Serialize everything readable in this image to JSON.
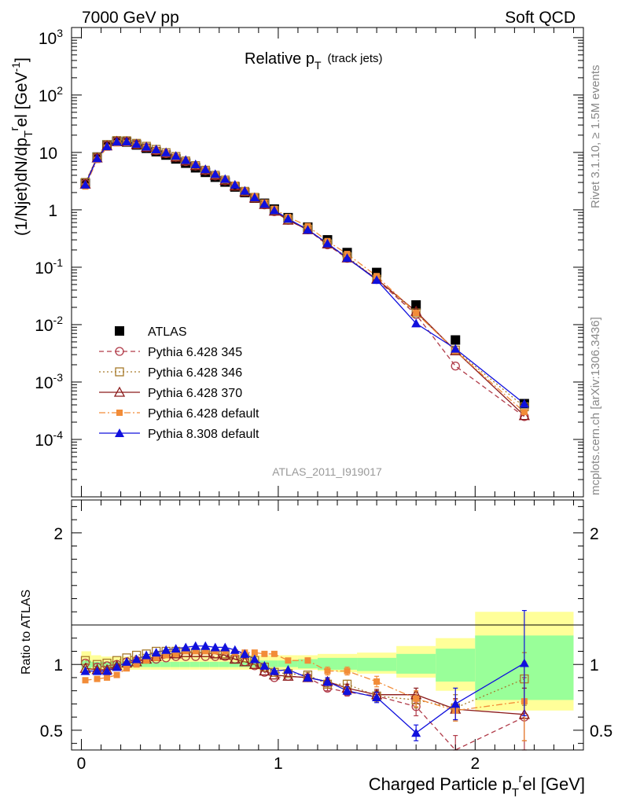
{
  "header": {
    "left": "7000 GeV pp",
    "right": "Soft QCD"
  },
  "side_text": {
    "rivet": "Rivet 3.1.10, ≥ 1.5M events",
    "mcplots": "mcplots.cern.ch [arXiv:1306.3436]"
  },
  "analysis_id": "ATLAS_2011_I919017",
  "colors": {
    "atlas": "#000000",
    "p345": "#b03a48",
    "p346": "#a6792a",
    "p370": "#8b1a1a",
    "pdef": "#f28c38",
    "p8": "#1010dd",
    "band_yellow": "#ffff99",
    "band_green": "#99ff99"
  },
  "chart_data": [
    {
      "type": "line",
      "title": "Relative pT (track jets)",
      "title_main": "Relative p",
      "title_sub": "T",
      "title_note": "(track jets)",
      "ylabel": "(1/Njet)dN/dpTrel [GeV-1]",
      "ylabel_parts": [
        "(1/Njet)dN/dp",
        "T",
        "r",
        "el [GeV",
        "-1",
        "]"
      ],
      "yscale": "log",
      "xlim": [
        -0.05,
        2.55
      ],
      "ylim": [
        1e-05,
        1500
      ],
      "y_ticks": [
        {
          "value": 0.0001,
          "base": "10",
          "exp": "-4"
        },
        {
          "value": 0.001,
          "base": "10",
          "exp": "-3"
        },
        {
          "value": 0.01,
          "base": "10",
          "exp": "-2"
        },
        {
          "value": 0.1,
          "base": "10",
          "exp": "-1"
        },
        {
          "value": 1,
          "base": "1",
          "exp": ""
        },
        {
          "value": 10,
          "base": "10",
          "exp": ""
        },
        {
          "value": 100,
          "base": "10",
          "exp": "2"
        },
        {
          "value": 1000,
          "base": "10",
          "exp": "3"
        }
      ],
      "legend_position": "bottom-left",
      "x": [
        0.02,
        0.08,
        0.13,
        0.18,
        0.23,
        0.28,
        0.33,
        0.38,
        0.43,
        0.48,
        0.53,
        0.58,
        0.63,
        0.68,
        0.73,
        0.78,
        0.83,
        0.88,
        0.93,
        0.98,
        1.05,
        1.15,
        1.25,
        1.35,
        1.5,
        1.7,
        1.9,
        2.25
      ],
      "series": [
        {
          "name": "ATLAS",
          "key": "atlas",
          "marker": "square-filled",
          "values": [
            2.9,
            8.3,
            13.5,
            15.6,
            15.2,
            13.5,
            11.8,
            10.3,
            9.0,
            7.7,
            6.5,
            5.4,
            4.5,
            3.7,
            3.05,
            2.5,
            2.0,
            1.6,
            1.3,
            1.03,
            0.73,
            0.5,
            0.3,
            0.18,
            0.081,
            0.022,
            0.0054,
            0.00042
          ]
        },
        {
          "name": "Pythia 6.428 345",
          "key": "p345",
          "marker": "circle-open",
          "dash": "6,4",
          "values": [
            2.9,
            8.2,
            13.5,
            15.8,
            15.6,
            14.0,
            12.2,
            10.7,
            9.5,
            8.2,
            6.9,
            5.8,
            4.8,
            3.9,
            3.2,
            2.6,
            2.05,
            1.6,
            1.22,
            0.93,
            0.66,
            0.45,
            0.245,
            0.143,
            0.061,
            0.015,
            0.0019,
            0.00025
          ]
        },
        {
          "name": "Pythia 6.428 346",
          "key": "p346",
          "marker": "square-open",
          "dash": "2,3",
          "values": [
            3.0,
            8.3,
            13.7,
            16.1,
            16.0,
            14.4,
            12.8,
            11.3,
            9.9,
            8.5,
            7.1,
            5.9,
            4.9,
            4.0,
            3.3,
            2.6,
            2.1,
            1.65,
            1.27,
            0.97,
            0.68,
            0.46,
            0.255,
            0.152,
            0.062,
            0.016,
            0.0036,
            0.00037
          ]
        },
        {
          "name": "Pythia 6.428 370",
          "key": "p370",
          "marker": "triangle-open",
          "dash": "",
          "values": [
            2.8,
            8.0,
            13.0,
            15.5,
            15.3,
            13.8,
            12.3,
            10.9,
            9.7,
            8.3,
            7.1,
            5.9,
            4.9,
            4.0,
            3.25,
            2.6,
            2.05,
            1.6,
            1.24,
            0.95,
            0.66,
            0.45,
            0.255,
            0.145,
            0.062,
            0.017,
            0.0035,
            0.00026
          ]
        },
        {
          "name": "Pythia 6.428 default",
          "key": "pdef",
          "marker": "square-filled-small",
          "dash": "8,3,2,3",
          "values": [
            2.55,
            7.4,
            12.1,
            14.4,
            14.7,
            13.5,
            12.1,
            10.8,
            9.6,
            8.3,
            7.1,
            5.9,
            4.9,
            4.0,
            3.3,
            2.7,
            2.15,
            1.71,
            1.33,
            1.04,
            0.75,
            0.52,
            0.285,
            0.17,
            0.07,
            0.016,
            0.0035,
            0.0003
          ]
        },
        {
          "name": "Pythia 8.308 default",
          "key": "p8",
          "marker": "triangle-filled",
          "dash": "",
          "values": [
            2.75,
            7.9,
            12.8,
            15.4,
            15.5,
            14.1,
            12.6,
            11.3,
            10.0,
            8.7,
            7.4,
            6.2,
            5.1,
            4.2,
            3.45,
            2.75,
            2.15,
            1.65,
            1.27,
            0.98,
            0.7,
            0.45,
            0.26,
            0.145,
            0.06,
            0.0105,
            0.0038,
            0.00042
          ]
        }
      ]
    },
    {
      "type": "line",
      "title": "",
      "ylabel": "Ratio to ATLAS",
      "xlabel": "Charged Particle pTrel [GeV]",
      "xlabel_parts": [
        "Charged Particle p",
        "T",
        "r",
        "el [GeV]"
      ],
      "xlim": [
        -0.05,
        2.55
      ],
      "ylim": [
        0.35,
        2.25
      ],
      "x_ticks": [
        {
          "value": 0,
          "label": "0"
        },
        {
          "value": 1,
          "label": "1"
        },
        {
          "value": 2,
          "label": "2"
        }
      ],
      "y_ticks": [
        {
          "value": 0.5,
          "label": "0.5"
        },
        {
          "value": 1,
          "label": "1"
        },
        {
          "value": 2,
          "label": "2"
        }
      ],
      "uncertainty_bands": {
        "x_edges": [
          0.0,
          0.05,
          0.1,
          0.15,
          0.2,
          0.25,
          0.3,
          0.35,
          0.4,
          0.45,
          0.5,
          0.55,
          0.6,
          0.65,
          0.7,
          0.75,
          0.8,
          0.85,
          0.9,
          0.95,
          1.0,
          1.1,
          1.2,
          1.3,
          1.4,
          1.6,
          1.8,
          2.0,
          2.5
        ],
        "yellow": [
          [
            0.93,
            1.1
          ],
          [
            0.96,
            1.07
          ],
          [
            0.96,
            1.06
          ],
          [
            0.96,
            1.06
          ],
          [
            0.96,
            1.06
          ],
          [
            0.96,
            1.06
          ],
          [
            0.96,
            1.06
          ],
          [
            0.96,
            1.07
          ],
          [
            0.96,
            1.07
          ],
          [
            0.96,
            1.07
          ],
          [
            0.96,
            1.07
          ],
          [
            0.96,
            1.07
          ],
          [
            0.96,
            1.07
          ],
          [
            0.96,
            1.07
          ],
          [
            0.96,
            1.07
          ],
          [
            0.96,
            1.07
          ],
          [
            0.96,
            1.07
          ],
          [
            0.96,
            1.07
          ],
          [
            0.96,
            1.07
          ],
          [
            0.96,
            1.07
          ],
          [
            0.96,
            1.07
          ],
          [
            0.96,
            1.07
          ],
          [
            0.95,
            1.08
          ],
          [
            0.94,
            1.08
          ],
          [
            0.93,
            1.09
          ],
          [
            0.9,
            1.14
          ],
          [
            0.8,
            1.2
          ],
          [
            0.65,
            1.4
          ],
          [
            0.15,
            2.08
          ]
        ],
        "green": [
          [
            0.97,
            1.03
          ],
          [
            0.98,
            1.02
          ],
          [
            0.98,
            1.02
          ],
          [
            0.98,
            1.02
          ],
          [
            0.98,
            1.02
          ],
          [
            0.98,
            1.02
          ],
          [
            0.98,
            1.02
          ],
          [
            0.98,
            1.02
          ],
          [
            0.98,
            1.02
          ],
          [
            0.98,
            1.02
          ],
          [
            0.98,
            1.02
          ],
          [
            0.98,
            1.02
          ],
          [
            0.98,
            1.02
          ],
          [
            0.98,
            1.02
          ],
          [
            0.98,
            1.02
          ],
          [
            0.98,
            1.02
          ],
          [
            0.98,
            1.02
          ],
          [
            0.98,
            1.03
          ],
          [
            0.98,
            1.03
          ],
          [
            0.98,
            1.03
          ],
          [
            0.98,
            1.03
          ],
          [
            0.97,
            1.04
          ],
          [
            0.96,
            1.05
          ],
          [
            0.96,
            1.05
          ],
          [
            0.95,
            1.05
          ],
          [
            0.93,
            1.08
          ],
          [
            0.87,
            1.12
          ],
          [
            0.73,
            1.22
          ],
          [
            0.25,
            1.65
          ]
        ]
      },
      "x": [
        0.02,
        0.08,
        0.13,
        0.18,
        0.23,
        0.28,
        0.33,
        0.38,
        0.43,
        0.48,
        0.53,
        0.58,
        0.63,
        0.68,
        0.73,
        0.78,
        0.83,
        0.88,
        0.93,
        0.98,
        1.05,
        1.15,
        1.25,
        1.35,
        1.5,
        1.7,
        1.9,
        2.25
      ],
      "series": [
        {
          "name": "Pythia 6.428 345",
          "key": "p345",
          "marker": "circle-open",
          "dash": "6,4",
          "values": [
            1.01,
            0.98,
            0.99,
            1.0,
            1.02,
            1.03,
            1.04,
            1.04,
            1.05,
            1.06,
            1.06,
            1.06,
            1.06,
            1.06,
            1.06,
            1.04,
            1.02,
            0.99,
            0.94,
            0.9,
            0.91,
            0.9,
            0.82,
            0.79,
            0.76,
            0.68,
            0.34,
            0.6
          ],
          "errors": [
            0.01,
            0.01,
            0.01,
            0.01,
            0.01,
            0.01,
            0.01,
            0.01,
            0.01,
            0.01,
            0.01,
            0.01,
            0.01,
            0.01,
            0.01,
            0.01,
            0.01,
            0.01,
            0.01,
            0.01,
            0.01,
            0.02,
            0.02,
            0.03,
            0.04,
            0.07,
            0.12,
            0.3
          ]
        },
        {
          "name": "Pythia 6.428 346",
          "key": "p346",
          "marker": "square-open",
          "dash": "2,3",
          "values": [
            1.03,
            1.0,
            1.01,
            1.03,
            1.05,
            1.07,
            1.08,
            1.1,
            1.1,
            1.1,
            1.09,
            1.09,
            1.09,
            1.08,
            1.08,
            1.04,
            1.05,
            1.03,
            0.98,
            0.94,
            0.93,
            0.92,
            0.85,
            0.85,
            0.76,
            0.73,
            0.67,
            0.89
          ],
          "errors": [
            0.01,
            0.01,
            0.01,
            0.01,
            0.01,
            0.01,
            0.01,
            0.01,
            0.01,
            0.01,
            0.01,
            0.01,
            0.01,
            0.01,
            0.01,
            0.01,
            0.01,
            0.01,
            0.01,
            0.01,
            0.01,
            0.02,
            0.02,
            0.03,
            0.04,
            0.06,
            0.1,
            0.2
          ]
        },
        {
          "name": "Pythia 6.428 370",
          "key": "p370",
          "marker": "triangle-open",
          "dash": "",
          "values": [
            0.97,
            0.96,
            0.96,
            0.99,
            1.01,
            1.02,
            1.04,
            1.06,
            1.08,
            1.08,
            1.09,
            1.09,
            1.09,
            1.08,
            1.07,
            1.04,
            1.02,
            1.0,
            0.95,
            0.92,
            0.91,
            0.9,
            0.87,
            0.82,
            0.77,
            0.77,
            0.66,
            0.62
          ],
          "errors": [
            0.01,
            0.01,
            0.01,
            0.01,
            0.01,
            0.01,
            0.01,
            0.01,
            0.01,
            0.01,
            0.01,
            0.01,
            0.01,
            0.01,
            0.01,
            0.01,
            0.01,
            0.01,
            0.01,
            0.01,
            0.01,
            0.02,
            0.02,
            0.03,
            0.04,
            0.05,
            0.08,
            0.2
          ]
        },
        {
          "name": "Pythia 6.428 default",
          "key": "pdef",
          "marker": "square-filled-small",
          "dash": "8,3,2,3",
          "values": [
            0.88,
            0.89,
            0.9,
            0.92,
            0.97,
            1.0,
            1.03,
            1.05,
            1.07,
            1.08,
            1.1,
            1.1,
            1.1,
            1.1,
            1.1,
            1.09,
            1.09,
            1.09,
            1.08,
            1.08,
            1.03,
            1.03,
            0.95,
            0.95,
            0.87,
            0.74,
            0.65,
            0.72
          ],
          "errors": [
            0.01,
            0.01,
            0.01,
            0.01,
            0.01,
            0.01,
            0.01,
            0.01,
            0.01,
            0.01,
            0.01,
            0.01,
            0.01,
            0.01,
            0.01,
            0.01,
            0.01,
            0.01,
            0.01,
            0.01,
            0.01,
            0.02,
            0.03,
            0.03,
            0.04,
            0.06,
            0.08,
            0.3
          ]
        },
        {
          "name": "Pythia 8.308 default",
          "key": "p8",
          "marker": "triangle-filled",
          "dash": "",
          "values": [
            0.95,
            0.95,
            0.95,
            0.98,
            1.02,
            1.04,
            1.07,
            1.09,
            1.11,
            1.12,
            1.13,
            1.14,
            1.14,
            1.13,
            1.13,
            1.11,
            1.08,
            1.04,
            0.99,
            0.95,
            0.96,
            0.9,
            0.87,
            0.8,
            0.75,
            0.48,
            0.7,
            1.01
          ],
          "errors": [
            0.01,
            0.01,
            0.01,
            0.01,
            0.01,
            0.01,
            0.01,
            0.01,
            0.01,
            0.01,
            0.01,
            0.01,
            0.01,
            0.01,
            0.01,
            0.01,
            0.01,
            0.01,
            0.01,
            0.01,
            0.01,
            0.02,
            0.03,
            0.03,
            0.04,
            0.06,
            0.12,
            0.4
          ]
        }
      ]
    }
  ]
}
